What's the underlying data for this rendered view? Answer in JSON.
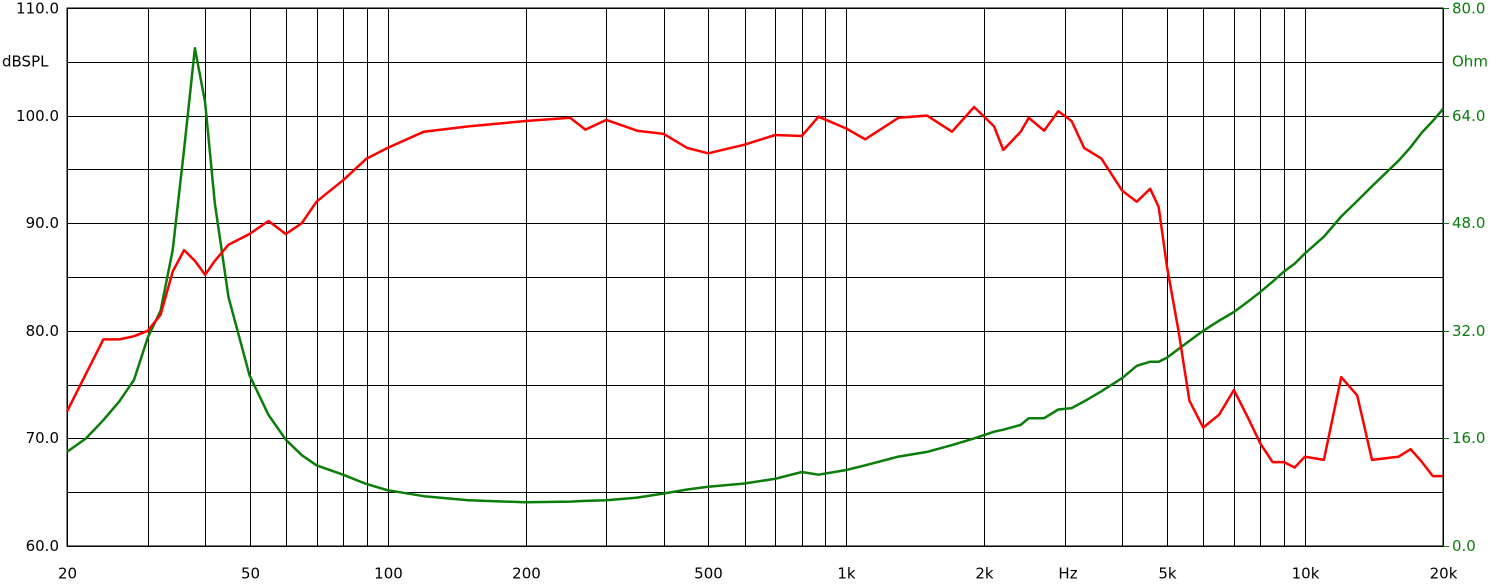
{
  "chart_data": {
    "type": "line",
    "xlog": true,
    "xlim": [
      20,
      20000
    ],
    "xticks": [
      20,
      50,
      100,
      200,
      500,
      {
        "value": 1000,
        "label": "1k"
      },
      {
        "value": 2000,
        "label": "2k"
      },
      {
        "value": 5000,
        "label": "5k"
      },
      {
        "value": 10000,
        "label": "10k"
      },
      {
        "value": 20000,
        "label": "20k"
      }
    ],
    "xminorticks": [
      30,
      40,
      60,
      70,
      80,
      90,
      300,
      400,
      600,
      700,
      800,
      900,
      3000,
      4000,
      6000,
      7000,
      8000,
      9000
    ],
    "xlabel": "Hz",
    "ylim": [
      60,
      110
    ],
    "yticks": [
      {
        "value": 60,
        "label": "60.0"
      },
      {
        "value": 70,
        "label": "70.0"
      },
      {
        "value": 80,
        "label": "80.0"
      },
      {
        "value": 90,
        "label": "90.0"
      },
      {
        "value": 100,
        "label": "100.0"
      },
      {
        "value": 110,
        "label": "110.0"
      }
    ],
    "yminorticks": [
      65,
      75,
      85,
      95,
      105
    ],
    "ylabel": "dBSPL",
    "y2lim": [
      0,
      80
    ],
    "y2ticks": [
      {
        "value": 0,
        "label": "0.0"
      },
      {
        "value": 16,
        "label": "16.0"
      },
      {
        "value": 32,
        "label": "32.0"
      },
      {
        "value": 48,
        "label": "48.0"
      },
      {
        "value": 64,
        "label": "64.0"
      },
      {
        "value": 80,
        "label": "80.0"
      }
    ],
    "y2label": "Ohm",
    "grid": true,
    "x": [
      20,
      22,
      24,
      26,
      28,
      30,
      32,
      34,
      36,
      38,
      40,
      42,
      45,
      50,
      55,
      60,
      65,
      70,
      80,
      90,
      100,
      120,
      150,
      200,
      250,
      270,
      300,
      350,
      400,
      450,
      500,
      600,
      700,
      800,
      870,
      1000,
      1100,
      1300,
      1500,
      1700,
      1900,
      2100,
      2200,
      2400,
      2500,
      2700,
      2900,
      3100,
      3300,
      3600,
      4000,
      4300,
      4600,
      4800,
      5000,
      5300,
      5600,
      6000,
      6500,
      7000,
      7500,
      8000,
      8500,
      9000,
      9500,
      10000,
      11000,
      12000,
      13000,
      14000,
      16000,
      17000,
      18000,
      19000,
      20000
    ],
    "series": [
      {
        "color": "#ff0000",
        "values": [
          72.5,
          76,
          79.2,
          79.2,
          79.5,
          80,
          81.5,
          85.5,
          87.5,
          86.5,
          85.2,
          86.5,
          88,
          89,
          90.2,
          89,
          90,
          92,
          94,
          96,
          97,
          98.5,
          99,
          99.5,
          99.8,
          98.7,
          99.6,
          98.6,
          98.3,
          97,
          96.5,
          97.3,
          98.2,
          98.1,
          99.9,
          98.8,
          97.8,
          99.8,
          100,
          98.5,
          100.8,
          99,
          96.8,
          98.5,
          99.8,
          98.6,
          100.4,
          99.5,
          97,
          96,
          93,
          92,
          93.2,
          91.5,
          86,
          80,
          73.5,
          71,
          72.2,
          74.5,
          72,
          69.5,
          67.8,
          67.8,
          67.3,
          68.3,
          68,
          75.7,
          74,
          68,
          68.3,
          69,
          67.8,
          66.5,
          66.5
        ]
      },
      {
        "color": "#0a7d0a",
        "axis": "y2",
        "values": [
          14,
          16,
          18.7,
          21.5,
          24.7,
          31,
          35,
          44,
          59,
          74,
          66,
          51,
          37,
          25.4,
          19.5,
          15.8,
          13.5,
          12,
          10.6,
          9.2,
          8.3,
          7.4,
          6.8,
          6.5,
          6.6,
          6.7,
          6.8,
          7.2,
          7.8,
          8.4,
          8.8,
          9.3,
          10,
          11,
          10.6,
          11.3,
          12,
          13.3,
          14,
          15,
          16,
          17,
          17.3,
          18,
          19,
          19,
          20.3,
          20.5,
          21.5,
          23,
          25,
          26.8,
          27.4,
          27.4,
          28,
          29.3,
          30.5,
          32,
          33.5,
          34.8,
          36.3,
          37.8,
          39.3,
          40.8,
          42,
          43.5,
          46,
          49,
          51.3,
          53.5,
          57.3,
          59.3,
          61.5,
          63.2,
          65
        ]
      }
    ]
  }
}
